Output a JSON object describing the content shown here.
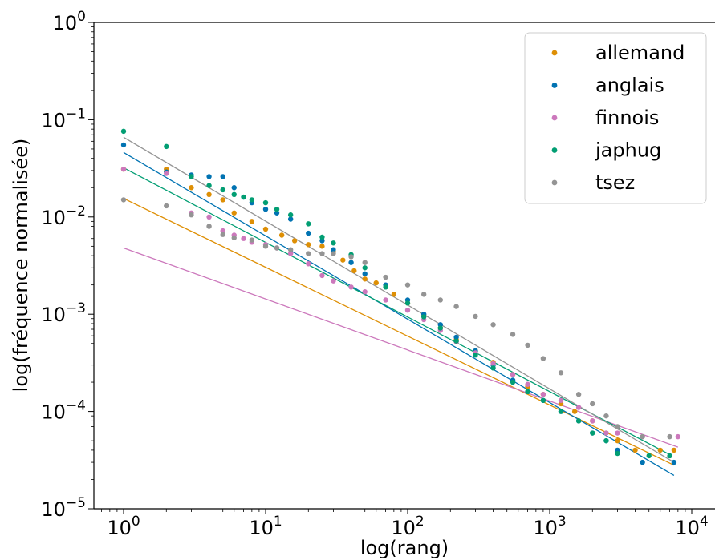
{
  "chart_data": {
    "type": "scatter",
    "xlabel": "log(rang)",
    "ylabel": "log(fréquence normalisée)",
    "xscale": "log",
    "yscale": "log",
    "xlim": [
      0.6,
      10500
    ],
    "ylim": [
      1e-05,
      1
    ],
    "x_tick_labels": [
      {
        "base": "10",
        "exp": "0",
        "value": 1
      },
      {
        "base": "10",
        "exp": "1",
        "value": 10
      },
      {
        "base": "10",
        "exp": "2",
        "value": 100
      },
      {
        "base": "10",
        "exp": "3",
        "value": 1000
      },
      {
        "base": "10",
        "exp": "4",
        "value": 10000
      }
    ],
    "y_tick_labels": [
      {
        "base": "10",
        "exp": "0",
        "value": 1
      },
      {
        "base": "10",
        "exp": "−1",
        "value": 0.1
      },
      {
        "base": "10",
        "exp": "−2",
        "value": 0.01
      },
      {
        "base": "10",
        "exp": "−3",
        "value": 0.001
      },
      {
        "base": "10",
        "exp": "−4",
        "value": 0.0001
      },
      {
        "base": "10",
        "exp": "−5",
        "value": 1e-05
      }
    ],
    "legend_position": "top-right",
    "grid": false,
    "series": [
      {
        "name": "allemand",
        "color": "#de8f05",
        "points": [
          [
            1,
            0.031
          ],
          [
            2,
            0.031
          ],
          [
            3,
            0.02
          ],
          [
            4,
            0.017
          ],
          [
            5,
            0.015
          ],
          [
            6,
            0.011
          ],
          [
            8,
            0.009
          ],
          [
            10,
            0.0075
          ],
          [
            13,
            0.0065
          ],
          [
            16,
            0.0057
          ],
          [
            20,
            0.0052
          ],
          [
            25,
            0.005
          ],
          [
            30,
            0.0044
          ],
          [
            35,
            0.0036
          ],
          [
            42,
            0.0028
          ],
          [
            50,
            0.0023
          ],
          [
            60,
            0.0021
          ],
          [
            80,
            0.0016
          ],
          [
            100,
            0.0013
          ],
          [
            130,
            0.00098
          ],
          [
            170,
            0.00072
          ],
          [
            220,
            0.00055
          ],
          [
            300,
            0.00042
          ],
          [
            400,
            0.00032
          ],
          [
            550,
            0.00024
          ],
          [
            700,
            0.00018
          ],
          [
            900,
            0.00015
          ],
          [
            1200,
            0.00012
          ],
          [
            1500,
            0.0001
          ],
          [
            2000,
            8e-05
          ],
          [
            2500,
            6e-05
          ],
          [
            3000,
            5e-05
          ],
          [
            4000,
            4e-05
          ],
          [
            6000,
            4e-05
          ],
          [
            7500,
            4e-05
          ]
        ],
        "fit": {
          "x": [
            1,
            7500
          ],
          "y": [
            0.0155,
            2.8e-05
          ]
        }
      },
      {
        "name": "anglais",
        "color": "#0173b2",
        "points": [
          [
            1,
            0.055
          ],
          [
            2,
            0.029
          ],
          [
            3,
            0.027
          ],
          [
            4,
            0.026
          ],
          [
            5,
            0.026
          ],
          [
            6,
            0.02
          ],
          [
            7,
            0.016
          ],
          [
            8,
            0.014
          ],
          [
            10,
            0.012
          ],
          [
            12,
            0.011
          ],
          [
            15,
            0.0095
          ],
          [
            20,
            0.0068
          ],
          [
            25,
            0.0057
          ],
          [
            30,
            0.0046
          ],
          [
            40,
            0.0034
          ],
          [
            50,
            0.0026
          ],
          [
            70,
            0.002
          ],
          [
            100,
            0.0014
          ],
          [
            130,
            0.001
          ],
          [
            170,
            0.00078
          ],
          [
            220,
            0.00058
          ],
          [
            300,
            0.00042
          ],
          [
            400,
            0.0003
          ],
          [
            550,
            0.00021
          ],
          [
            700,
            0.00016
          ],
          [
            900,
            0.00013
          ],
          [
            1200,
            0.0001
          ],
          [
            1600,
            8e-05
          ],
          [
            2000,
            6e-05
          ],
          [
            2500,
            5e-05
          ],
          [
            3000,
            4e-05
          ],
          [
            4500,
            3e-05
          ],
          [
            7500,
            3e-05
          ]
        ],
        "fit": {
          "x": [
            1,
            7500
          ],
          "y": [
            0.046,
            2.2e-05
          ]
        }
      },
      {
        "name": "finnois",
        "color": "#cc78bc",
        "points": [
          [
            1,
            0.031
          ],
          [
            2,
            0.028
          ],
          [
            3,
            0.011
          ],
          [
            4,
            0.01
          ],
          [
            5,
            0.0072
          ],
          [
            6,
            0.0065
          ],
          [
            7,
            0.006
          ],
          [
            8,
            0.0055
          ],
          [
            10,
            0.0052
          ],
          [
            12,
            0.0048
          ],
          [
            15,
            0.0042
          ],
          [
            20,
            0.0033
          ],
          [
            25,
            0.0025
          ],
          [
            30,
            0.0022
          ],
          [
            40,
            0.0019
          ],
          [
            50,
            0.0017
          ],
          [
            70,
            0.0014
          ],
          [
            100,
            0.0011
          ],
          [
            130,
            0.00088
          ],
          [
            170,
            0.00068
          ],
          [
            220,
            0.00052
          ],
          [
            300,
            0.0004
          ],
          [
            400,
            0.00031
          ],
          [
            550,
            0.00024
          ],
          [
            700,
            0.00019
          ],
          [
            900,
            0.00015
          ],
          [
            1200,
            0.00013
          ],
          [
            1600,
            0.00011
          ],
          [
            2000,
            8e-05
          ],
          [
            2500,
            6e-05
          ],
          [
            3000,
            6e-05
          ],
          [
            4500,
            5.5e-05
          ],
          [
            8000,
            5.5e-05
          ]
        ],
        "fit": {
          "x": [
            1,
            8000
          ],
          "y": [
            0.0048,
            4.3e-05
          ]
        }
      },
      {
        "name": "japhug",
        "color": "#029e73",
        "points": [
          [
            1,
            0.076
          ],
          [
            2,
            0.053
          ],
          [
            3,
            0.026
          ],
          [
            4,
            0.021
          ],
          [
            5,
            0.019
          ],
          [
            6,
            0.017
          ],
          [
            7,
            0.016
          ],
          [
            8,
            0.015
          ],
          [
            10,
            0.014
          ],
          [
            12,
            0.012
          ],
          [
            15,
            0.0105
          ],
          [
            20,
            0.0085
          ],
          [
            25,
            0.0062
          ],
          [
            30,
            0.0054
          ],
          [
            40,
            0.0041
          ],
          [
            50,
            0.003
          ],
          [
            70,
            0.0019
          ],
          [
            100,
            0.0013
          ],
          [
            130,
            0.00094
          ],
          [
            170,
            0.00072
          ],
          [
            220,
            0.00053
          ],
          [
            300,
            0.00038
          ],
          [
            400,
            0.00028
          ],
          [
            550,
            0.0002
          ],
          [
            700,
            0.00016
          ],
          [
            900,
            0.00013
          ],
          [
            1200,
            0.0001
          ],
          [
            1600,
            8e-05
          ],
          [
            2000,
            6e-05
          ],
          [
            2500,
            5e-05
          ],
          [
            3000,
            3.7e-05
          ],
          [
            5000,
            3.5e-05
          ],
          [
            7000,
            3.5e-05
          ]
        ],
        "fit": {
          "x": [
            1,
            7000
          ],
          "y": [
            0.032,
            3.6e-05
          ]
        }
      },
      {
        "name": "tsez",
        "color": "#949494",
        "points": [
          [
            1,
            0.015
          ],
          [
            2,
            0.013
          ],
          [
            3,
            0.0105
          ],
          [
            4,
            0.008
          ],
          [
            5,
            0.0066
          ],
          [
            6,
            0.0061
          ],
          [
            8,
            0.0058
          ],
          [
            10,
            0.005
          ],
          [
            12,
            0.0048
          ],
          [
            15,
            0.0046
          ],
          [
            20,
            0.0042
          ],
          [
            25,
            0.0042
          ],
          [
            30,
            0.0042
          ],
          [
            40,
            0.0039
          ],
          [
            50,
            0.0034
          ],
          [
            70,
            0.0024
          ],
          [
            100,
            0.002
          ],
          [
            130,
            0.0016
          ],
          [
            170,
            0.0014
          ],
          [
            220,
            0.0012
          ],
          [
            300,
            0.00095
          ],
          [
            400,
            0.00078
          ],
          [
            550,
            0.00062
          ],
          [
            700,
            0.00048
          ],
          [
            900,
            0.00035
          ],
          [
            1200,
            0.00025
          ],
          [
            1600,
            0.00015
          ],
          [
            2000,
            0.00012
          ],
          [
            2500,
            9e-05
          ],
          [
            3000,
            7e-05
          ],
          [
            4500,
            5.5e-05
          ],
          [
            7000,
            5.5e-05
          ]
        ],
        "fit": {
          "x": [
            1,
            7500
          ],
          "y": [
            0.066,
            3e-05
          ]
        }
      }
    ]
  }
}
